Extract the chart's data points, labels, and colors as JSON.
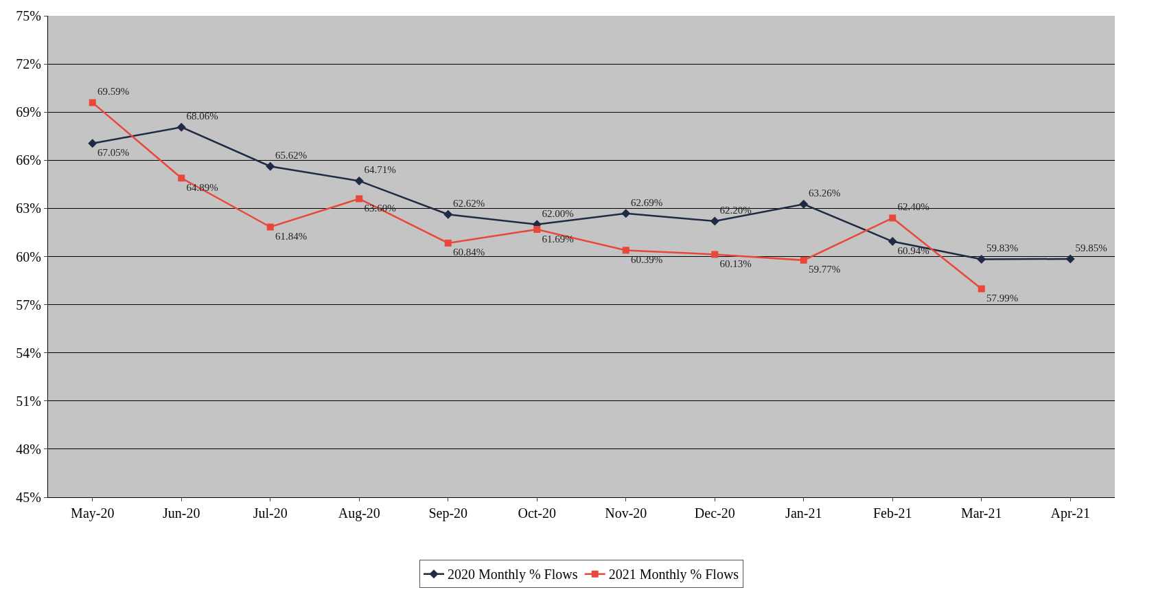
{
  "chart_data": {
    "type": "line",
    "categories": [
      "May-20",
      "Jun-20",
      "Jul-20",
      "Aug-20",
      "Sep-20",
      "Oct-20",
      "Nov-20",
      "Dec-20",
      "Jan-21",
      "Feb-21",
      "Mar-21",
      "Apr-21"
    ],
    "series": [
      {
        "name": "2020 Monthly % Flows",
        "color": "#1f2a44",
        "marker": "diamond",
        "values": [
          67.05,
          68.06,
          65.62,
          64.71,
          62.62,
          62.0,
          62.69,
          62.2,
          63.26,
          60.94,
          59.83,
          59.85
        ],
        "value_labels": [
          "67.05%",
          "68.06%",
          "65.62%",
          "64.71%",
          "62.62%",
          "62.00%",
          "62.69%",
          "62.20%",
          "63.26%",
          "60.94%",
          "59.83%",
          "59.85%"
        ]
      },
      {
        "name": "2021 Monthly % Flows",
        "color": "#e8473a",
        "marker": "square",
        "values": [
          69.59,
          64.89,
          61.84,
          63.6,
          60.84,
          61.69,
          60.39,
          60.13,
          59.77,
          62.4,
          57.99,
          null
        ],
        "value_labels": [
          "69.59%",
          "64.89%",
          "61.84%",
          "63.60%",
          "60.84%",
          "61.69%",
          "60.39%",
          "60.13%",
          "59.77%",
          "62.40%",
          "57.99%",
          null
        ]
      }
    ],
    "ylim": [
      45,
      75
    ],
    "yticks": [
      {
        "value": 45,
        "label": "45%"
      },
      {
        "value": 48,
        "label": "48%"
      },
      {
        "value": 51,
        "label": "51%"
      },
      {
        "value": 54,
        "label": "54%"
      },
      {
        "value": 57,
        "label": "57%"
      },
      {
        "value": 60,
        "label": "60%"
      },
      {
        "value": 63,
        "label": "63%"
      },
      {
        "value": 66,
        "label": "66%"
      },
      {
        "value": 69,
        "label": "69%"
      },
      {
        "value": 72,
        "label": "72%"
      },
      {
        "value": 75,
        "label": "75%"
      }
    ],
    "grid": "y",
    "legend": "bottom",
    "line_style": "solid"
  }
}
